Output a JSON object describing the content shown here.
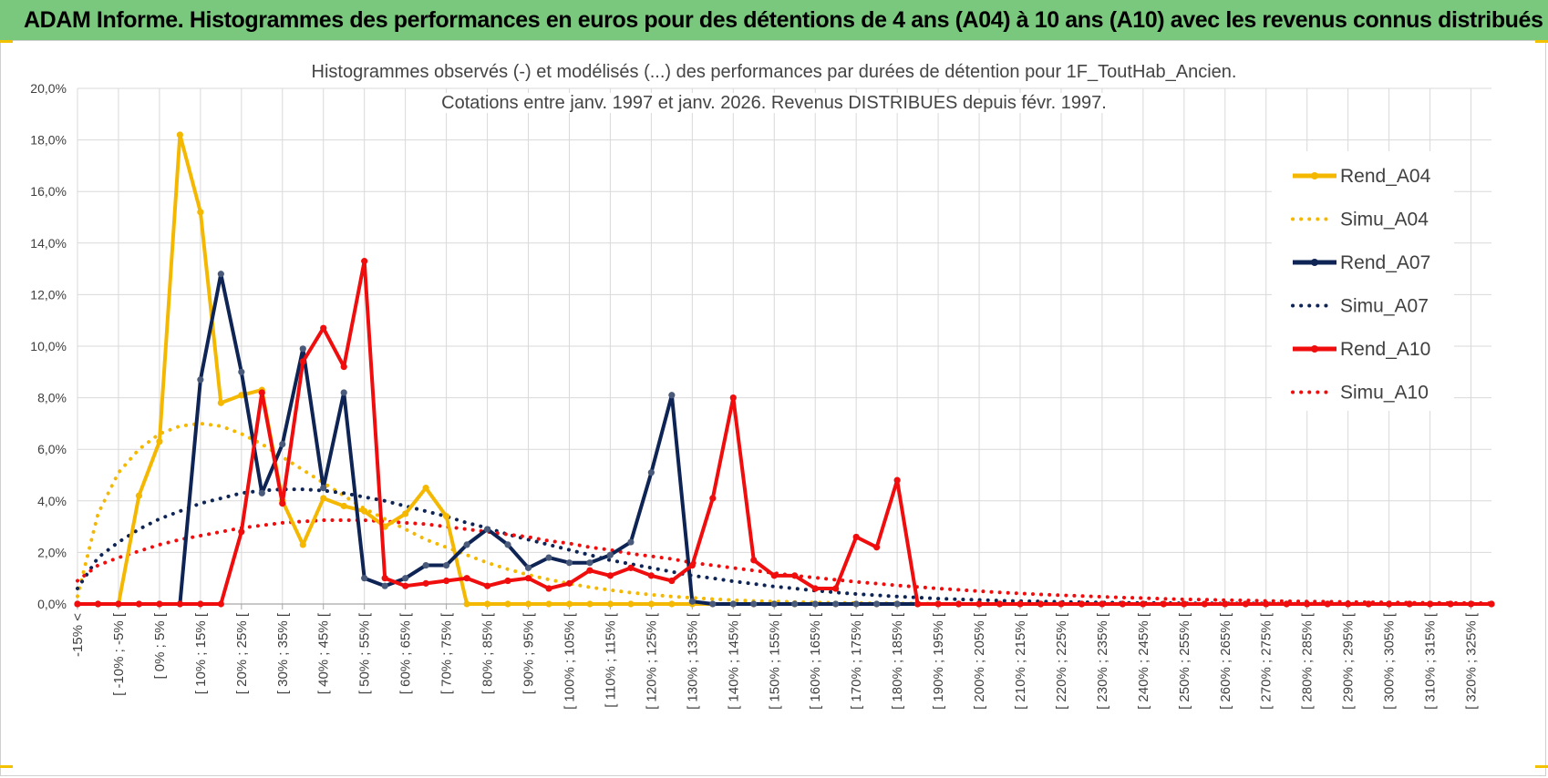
{
  "banner": {
    "title": "ADAM Informe. Histogrammes des performances en euros pour des détentions de 4 ans (A04) à 10 ans (A10) avec les revenus connus distribués"
  },
  "colors": {
    "banner_bg": "#7ac77e",
    "gold": "#f5b800",
    "navy": "#0e2454",
    "red": "#f00d0d",
    "grid": "#d9d9d9",
    "axis_text": "#404040"
  },
  "chart_data": {
    "type": "line",
    "title": "Histogrammes observés (-) et modélisés (...) des performances par durées de détention pour 1F_ToutHab_Ancien.",
    "subtitle": "Cotations entre janv. 1997 et janv. 2026. Revenus DISTRIBUES depuis févr. 1997.",
    "xlabel": "",
    "ylabel": "",
    "ylim": [
      0,
      20
    ],
    "y_ticks": [
      "0,0%",
      "2,0%",
      "4,0%",
      "6,0%",
      "8,0%",
      "10,0%",
      "12,0%",
      "14,0%",
      "16,0%",
      "18,0%",
      "20,0%"
    ],
    "grid": true,
    "legend_position": "right",
    "categories": [
      "-15% <",
      "[ -15% ; -10% [",
      "[ -10% ; -5% [",
      "[ -5% ; 0% [",
      "[ 0% ; 5% [",
      "[ 5% ; 10% [",
      "[ 10% ; 15% [",
      "[ 15% ; 20% [",
      "[ 20% ; 25% [",
      "[ 25% ; 30% [",
      "[ 30% ; 35% [",
      "[ 35% ; 40% [",
      "[ 40% ; 45% [",
      "[ 45% ; 50% [",
      "[ 50% ; 55% [",
      "[ 55% ; 60% [",
      "[ 60% ; 65% [",
      "[ 65% ; 70% [",
      "[ 70% ; 75% [",
      "[ 75% ; 80% [",
      "[ 80% ; 85% [",
      "[ 85% ; 90% [",
      "[ 90% ; 95% [",
      "[ 95% ; 100% [",
      "[ 100% ; 105% [",
      "[ 105% ; 110% [",
      "[ 110% ; 115% [",
      "[ 115% ; 120% [",
      "[ 120% ; 125% [",
      "[ 125% ; 130% [",
      "[ 130% ; 135% [",
      "[ 135% ; 140% [",
      "[ 140% ; 145% [",
      "[ 145% ; 150% [",
      "[ 150% ; 155% [",
      "[ 155% ; 160% [",
      "[ 160% ; 165% [",
      "[ 165% ; 170% [",
      "[ 170% ; 175% [",
      "[ 175% ; 180% [",
      "[ 180% ; 185% [",
      "[ 185% ; 190% [",
      "[ 190% ; 195% [",
      "[ 195% ; 200% [",
      "[ 200% ; 205% [",
      "[ 205% ; 210% [",
      "[ 210% ; 215% [",
      "[ 215% ; 220% [",
      "[ 220% ; 225% [",
      "[ 225% ; 230% [",
      "[ 230% ; 235% [",
      "[ 235% ; 240% [",
      "[ 240% ; 245% [",
      "[ 245% ; 250% [",
      "[ 250% ; 255% [",
      "[ 255% ; 260% [",
      "[ 260% ; 265% [",
      "[ 265% ; 270% [",
      "[ 270% ; 275% [",
      "[ 275% ; 280% [",
      "[ 280% ; 285% [",
      "[ 285% ; 290% [",
      "[ 290% ; 295% [",
      "[ 295% ; 300% [",
      "[ 300% ; 305% [",
      "[ 305% ; 310% [",
      "[ 310% ; 315% [",
      "[ 315% ; 320% [",
      "[ 320% ; 325% [",
      "[ 325% ; 330% ["
    ],
    "visible_category_labels": [
      "-15% <",
      "[ -10% ; -5% [",
      "[ 0% ; 5% [",
      "[ 10% ; 15% [",
      "[ 20% ; 25% [",
      "[ 30% ; 35% [",
      "[ 40% ; 45% [",
      "[ 50% ; 55% [",
      "[ 60% ; 65% [",
      "[ 70% ; 75% [",
      "[ 80% ; 85% [",
      "[ 90% ; 95% [",
      "[ 100% ; 105% [",
      "[ 110% ; 115% [",
      "[ 120% ; 125% [",
      "[ 130% ; 135% [",
      "[ 140% ; 145% [",
      "[ 150% ; 155% [",
      "[ 160% ; 165% [",
      "[ 170% ; 175% [",
      "[ 180% ; 185% [",
      "[ 190% ; 195% [",
      "[ 200% ; 205% [",
      "[ 210% ; 215% [",
      "[ 220% ; 225% [",
      "[ 230% ; 235% [",
      "[ 240% ; 245% [",
      "[ 250% ; 255% [",
      "[ 260% ; 265% [",
      "[ 270% ; 275% [",
      "[ 280% ; 285% [",
      "[ 290% ; 295% [",
      "[ 300% ; 305% [",
      "[ 310% ; 315% [",
      "[ 320% ; 325% ["
    ],
    "series": [
      {
        "name": "Rend_A04",
        "style": "solid",
        "color": "#f5b800",
        "values": [
          0,
          0,
          0,
          4.2,
          6.3,
          18.2,
          15.2,
          7.8,
          8.1,
          8.3,
          4.0,
          2.3,
          4.1,
          3.8,
          3.6,
          3.0,
          3.5,
          4.5,
          3.4,
          0,
          0,
          0,
          0,
          0,
          0,
          0,
          0,
          0,
          0,
          0,
          0,
          0,
          0,
          0,
          0,
          0,
          0,
          0,
          0,
          0,
          0,
          0,
          0,
          0,
          0,
          0,
          0,
          0,
          0,
          0,
          0,
          0,
          0,
          0,
          0,
          0,
          0,
          0,
          0,
          0,
          0,
          0,
          0,
          0,
          0,
          0,
          0,
          0,
          0,
          0
        ]
      },
      {
        "name": "Simu_A04",
        "style": "dotted",
        "color": "#f5b800",
        "values": [
          0.3,
          3.5,
          5.1,
          6.0,
          6.6,
          6.9,
          7.0,
          6.9,
          6.6,
          6.2,
          5.7,
          5.2,
          4.7,
          4.2,
          3.7,
          3.3,
          2.9,
          2.5,
          2.2,
          1.9,
          1.6,
          1.35,
          1.13,
          0.95,
          0.79,
          0.65,
          0.54,
          0.44,
          0.36,
          0.29,
          0.24,
          0.19,
          0.15,
          0.12,
          0.1,
          0.08,
          0.06,
          0.05,
          0.04,
          0.03,
          0.02,
          0.02,
          0.01,
          0.01,
          0.01,
          0.01,
          0,
          0,
          0,
          0,
          0,
          0,
          0,
          0,
          0,
          0,
          0,
          0,
          0,
          0,
          0,
          0,
          0,
          0,
          0,
          0,
          0,
          0,
          0,
          0
        ]
      },
      {
        "name": "Rend_A07",
        "style": "solid",
        "color": "#0e2454",
        "values": [
          0,
          0,
          0,
          0,
          0,
          0,
          8.7,
          12.8,
          9.0,
          4.3,
          6.2,
          9.9,
          4.5,
          8.2,
          1.0,
          0.7,
          1.0,
          1.5,
          1.5,
          2.3,
          2.9,
          2.3,
          1.4,
          1.8,
          1.6,
          1.6,
          1.9,
          2.4,
          5.1,
          8.1,
          0.1,
          0,
          0,
          0,
          0,
          0,
          0,
          0,
          0,
          0,
          0,
          0,
          0,
          0,
          0,
          0,
          0,
          0,
          0,
          0,
          0,
          0,
          0,
          0,
          0,
          0,
          0,
          0,
          0,
          0,
          0,
          0,
          0,
          0,
          0,
          0,
          0,
          0,
          0,
          0
        ]
      },
      {
        "name": "Simu_A07",
        "style": "dotted",
        "color": "#0e2454",
        "values": [
          0.6,
          1.8,
          2.4,
          2.9,
          3.3,
          3.6,
          3.9,
          4.1,
          4.3,
          4.4,
          4.45,
          4.45,
          4.4,
          4.3,
          4.15,
          4.0,
          3.8,
          3.6,
          3.4,
          3.15,
          2.95,
          2.7,
          2.5,
          2.3,
          2.1,
          1.9,
          1.7,
          1.55,
          1.4,
          1.25,
          1.1,
          1.0,
          0.88,
          0.78,
          0.68,
          0.6,
          0.52,
          0.45,
          0.39,
          0.34,
          0.29,
          0.25,
          0.21,
          0.18,
          0.16,
          0.13,
          0.11,
          0.1,
          0.08,
          0.07,
          0.06,
          0.05,
          0.04,
          0.04,
          0.03,
          0.03,
          0.02,
          0.02,
          0.02,
          0.01,
          0.01,
          0.01,
          0.01,
          0.01,
          0,
          0,
          0,
          0,
          0,
          0
        ]
      },
      {
        "name": "Rend_A10",
        "style": "solid",
        "color": "#f00d0d",
        "values": [
          0,
          0,
          0,
          0,
          0,
          0,
          0,
          0,
          2.8,
          8.2,
          3.9,
          9.4,
          10.7,
          9.2,
          13.3,
          1.0,
          0.7,
          0.8,
          0.9,
          1.0,
          0.7,
          0.9,
          1.0,
          0.6,
          0.8,
          1.3,
          1.1,
          1.4,
          1.1,
          0.9,
          1.5,
          4.1,
          8.0,
          1.7,
          1.1,
          1.1,
          0.6,
          0.6,
          2.6,
          2.2,
          4.8,
          0,
          0,
          0,
          0,
          0,
          0,
          0,
          0,
          0,
          0,
          0,
          0,
          0,
          0,
          0,
          0,
          0,
          0,
          0,
          0,
          0,
          0,
          0,
          0,
          0,
          0,
          0,
          0,
          0
        ]
      },
      {
        "name": "Simu_A10",
        "style": "dotted",
        "color": "#f00d0d",
        "values": [
          0.9,
          1.5,
          1.8,
          2.05,
          2.3,
          2.5,
          2.65,
          2.8,
          2.95,
          3.05,
          3.15,
          3.2,
          3.25,
          3.25,
          3.25,
          3.2,
          3.15,
          3.1,
          3.0,
          2.9,
          2.8,
          2.7,
          2.6,
          2.45,
          2.35,
          2.2,
          2.1,
          1.95,
          1.85,
          1.75,
          1.6,
          1.5,
          1.4,
          1.3,
          1.2,
          1.1,
          1.02,
          0.94,
          0.86,
          0.79,
          0.72,
          0.66,
          0.6,
          0.55,
          0.5,
          0.45,
          0.41,
          0.37,
          0.34,
          0.31,
          0.28,
          0.25,
          0.23,
          0.2,
          0.18,
          0.17,
          0.15,
          0.14,
          0.12,
          0.11,
          0.1,
          0.09,
          0.08,
          0.07,
          0.06,
          0.05,
          0.05,
          0.04,
          0.04,
          0.03
        ]
      }
    ]
  }
}
